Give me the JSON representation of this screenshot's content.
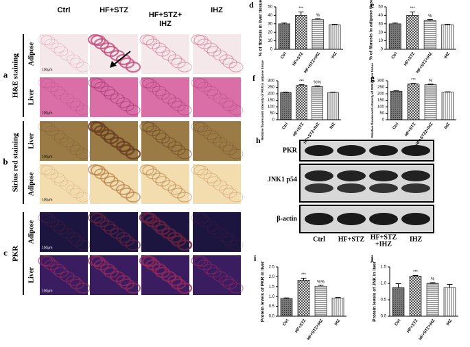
{
  "figure": {
    "columns": [
      [
        "Ctrl"
      ],
      [
        "HF+STZ"
      ],
      [
        "HF+STZ+",
        "IHZ"
      ],
      [
        "IHZ"
      ]
    ],
    "sections": [
      {
        "letter": "a",
        "title": "H&E staining",
        "rows": [
          "Adipose",
          "Liver"
        ]
      },
      {
        "letter": "b",
        "title": "Sirius red staining",
        "rows": [
          "Liver",
          "Adipose"
        ]
      },
      {
        "letter": "c",
        "title": "PKR",
        "rows": [
          "Adipose",
          "Liver"
        ]
      }
    ],
    "scale_bar": "100µm",
    "blot": {
      "letter": "h",
      "bands": [
        "PKR",
        "JNK1 p54",
        "β-actin"
      ],
      "lanes": [
        [
          "Ctrl"
        ],
        [
          "HF+STZ"
        ],
        [
          "HF+STZ",
          "+IHZ"
        ],
        [
          "IHZ"
        ]
      ]
    }
  },
  "chart_data": [
    {
      "panel": "d",
      "type": "bar",
      "y_label": "% of fibrosis in liver tissue",
      "categories": [
        "Ctrl",
        "HF+STZ",
        "HF+STZ+IHZ",
        "IHZ"
      ],
      "values": [
        30,
        40,
        35,
        29
      ],
      "errors": [
        1,
        4,
        1,
        0.5
      ],
      "annotations": [
        null,
        "***",
        "%",
        null
      ],
      "ylim": [
        0,
        50
      ],
      "yticks": [
        0,
        10,
        20,
        30,
        40,
        50
      ]
    },
    {
      "panel": "e",
      "type": "bar",
      "y_label": "% of fibrosis in adipose tissue",
      "categories": [
        "Ctrl",
        "HF+STZ",
        "HF+STZ+IHZ",
        "IHZ"
      ],
      "values": [
        30,
        40,
        34,
        29
      ],
      "errors": [
        1,
        4,
        1,
        0.5
      ],
      "annotations": [
        null,
        "***",
        "%",
        null
      ],
      "ylim": [
        0,
        50
      ],
      "yticks": [
        0,
        10,
        20,
        30,
        40,
        50
      ]
    },
    {
      "panel": "f",
      "type": "bar",
      "y_label": "Relative fluorescent intensity of PKR in adipose tissue",
      "categories": [
        "Ctrl",
        "HF+STZ",
        "HF+STZ+IHZ",
        "IHZ"
      ],
      "values": [
        210,
        265,
        255,
        210
      ],
      "errors": [
        3,
        5,
        5,
        3
      ],
      "annotations": [
        null,
        "***",
        "%%",
        null
      ],
      "ylim": [
        0,
        300
      ],
      "yticks": [
        0,
        50,
        100,
        150,
        200,
        250,
        300
      ]
    },
    {
      "panel": "g",
      "type": "bar",
      "y_label": "Relative fluorescent intensity of PKR in liver tissue",
      "categories": [
        "Ctrl",
        "HF+STZ",
        "HF+STZ2+IHZ",
        "IHZ"
      ],
      "values": [
        220,
        275,
        270,
        212
      ],
      "errors": [
        3,
        4,
        4,
        3
      ],
      "annotations": [
        null,
        "***",
        "%",
        null
      ],
      "ylim": [
        0,
        300
      ],
      "yticks": [
        0,
        50,
        100,
        150,
        200,
        250,
        300
      ]
    },
    {
      "panel": "i",
      "type": "bar",
      "y_label": "Protein levels of PKR in liver",
      "categories": [
        "Ctrl",
        "HF+STZ",
        "HF+STZ+IHZ",
        "IHZ"
      ],
      "values": [
        0.9,
        1.83,
        1.52,
        0.92
      ],
      "errors": [
        0.03,
        0.1,
        0.05,
        0.03
      ],
      "annotations": [
        null,
        "***",
        "%%",
        null
      ],
      "ylim": [
        0,
        2.5
      ],
      "yticks": [
        {
          "value": 0,
          "label": "0.0"
        },
        0.5,
        {
          "value": 1,
          "label": "1.0"
        },
        1.5,
        {
          "value": 2,
          "label": "2.0"
        },
        2.5
      ]
    },
    {
      "panel": "j",
      "type": "bar",
      "y_label": "Protein levels of JNK in liver",
      "categories": [
        "Ctrl",
        "HF+STZ",
        "HF+STZ+IHZ",
        "IHZ"
      ],
      "values": [
        0.87,
        1.22,
        1.0,
        0.87
      ],
      "errors": [
        0.12,
        0.02,
        0.02,
        0.1
      ],
      "annotations": [
        null,
        "***",
        "%",
        null
      ],
      "ylim": [
        0,
        1.5
      ],
      "yticks": [
        {
          "value": 0,
          "label": "0.0"
        },
        0.5,
        {
          "value": 1,
          "label": "1.0"
        },
        1.5
      ]
    }
  ]
}
